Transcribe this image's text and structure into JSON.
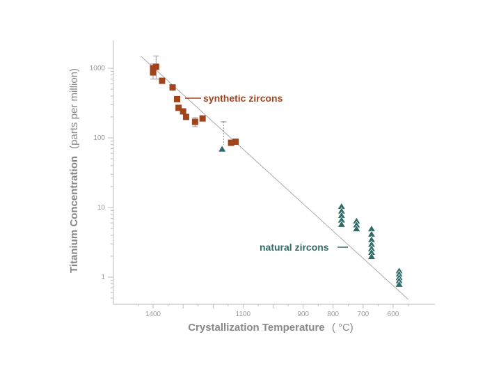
{
  "chart_data": {
    "type": "scatter",
    "title": "",
    "xlabel": "Crystallization Temperature",
    "xlabel_unit": "( °C)",
    "ylabel": "Titanium Concentration",
    "ylabel_unit": "(parts per million)",
    "x_reversed": true,
    "y_scale": "log",
    "xlim": [
      1470,
      530
    ],
    "ylim": [
      0.43,
      1700
    ],
    "x_ticks": [
      1400,
      1100,
      900,
      800,
      700,
      600
    ],
    "x_tick_labels": [
      "1400",
      "1100",
      "900",
      "800",
      "700",
      "600"
    ],
    "y_ticks": [
      1,
      10,
      100,
      1000
    ],
    "y_tick_labels": [
      "1",
      "10",
      "100",
      "1000"
    ],
    "grid": false,
    "colors": {
      "synthetic": "#a0441c",
      "natural": "#2e6b68",
      "trend": "#aaaaaa",
      "axis": "#bbbbbb"
    },
    "trend_line": {
      "x": [
        1440,
        550
      ],
      "y": [
        1480,
        0.48
      ]
    },
    "series": [
      {
        "name": "synthetic zircons",
        "marker": "square",
        "points": [
          {
            "x": 1400,
            "y": 870,
            "err": [
              700,
              1100
            ]
          },
          {
            "x": 1400,
            "y": 1000,
            "err": [
              800,
              1150
            ]
          },
          {
            "x": 1390,
            "y": 1050,
            "err": [
              700,
              1500
            ]
          },
          {
            "x": 1370,
            "y": 660
          },
          {
            "x": 1335,
            "y": 530
          },
          {
            "x": 1320,
            "y": 360
          },
          {
            "x": 1315,
            "y": 270
          },
          {
            "x": 1300,
            "y": 240
          },
          {
            "x": 1290,
            "y": 200
          },
          {
            "x": 1260,
            "y": 170,
            "err": [
              145,
              195
            ]
          },
          {
            "x": 1235,
            "y": 190
          },
          {
            "x": 1140,
            "y": 85
          },
          {
            "x": 1125,
            "y": 88
          }
        ]
      },
      {
        "name": "natural zircons",
        "marker": "triangle",
        "points": [
          {
            "x": 1170,
            "y": 70
          },
          {
            "x": 772,
            "y": 10.5
          },
          {
            "x": 772,
            "y": 9
          },
          {
            "x": 772,
            "y": 7.8
          },
          {
            "x": 772,
            "y": 6.7
          },
          {
            "x": 772,
            "y": 5.8
          },
          {
            "x": 722,
            "y": 6.5
          },
          {
            "x": 722,
            "y": 5.7
          },
          {
            "x": 722,
            "y": 5
          },
          {
            "x": 672,
            "y": 5
          },
          {
            "x": 672,
            "y": 4.2
          },
          {
            "x": 672,
            "y": 3.5
          },
          {
            "x": 672,
            "y": 3
          },
          {
            "x": 672,
            "y": 2.6
          },
          {
            "x": 672,
            "y": 2.3
          },
          {
            "x": 672,
            "y": 2
          },
          {
            "x": 580,
            "y": 1.25
          },
          {
            "x": 580,
            "y": 1.12
          },
          {
            "x": 580,
            "y": 1
          },
          {
            "x": 580,
            "y": 0.9
          },
          {
            "x": 580,
            "y": 0.8
          }
        ]
      }
    ],
    "annotations": [
      {
        "text": "synthetic zircons",
        "series": 0
      },
      {
        "text": "natural zircons",
        "series": 1
      }
    ]
  }
}
